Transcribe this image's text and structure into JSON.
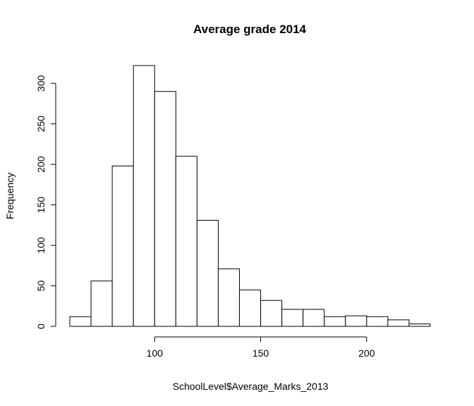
{
  "chart_data": {
    "type": "bar",
    "subtype": "histogram",
    "title": "Average grade 2014",
    "xlabel": "SchoolLevel$Average_Marks_2013",
    "ylabel": "Frequency",
    "bin_edges": [
      60,
      70,
      80,
      90,
      100,
      110,
      120,
      130,
      140,
      150,
      160,
      170,
      180,
      190,
      200,
      210,
      220,
      230
    ],
    "values": [
      12,
      56,
      198,
      322,
      290,
      210,
      131,
      71,
      45,
      32,
      21,
      21,
      12,
      13,
      12,
      8,
      3
    ],
    "xlim": [
      60,
      230
    ],
    "ylim": [
      0,
      322
    ],
    "xticks": [
      "100",
      "150",
      "200"
    ],
    "xtick_values": [
      100,
      150,
      200
    ],
    "yticks": [
      "0",
      "50",
      "100",
      "150",
      "200",
      "250",
      "300"
    ],
    "ytick_values": [
      0,
      50,
      100,
      150,
      200,
      250,
      300
    ],
    "grid": false,
    "legend": "none",
    "colors": {
      "bar_fill": "#ffffff",
      "bar_stroke": "#000000",
      "text": "#000000"
    }
  }
}
